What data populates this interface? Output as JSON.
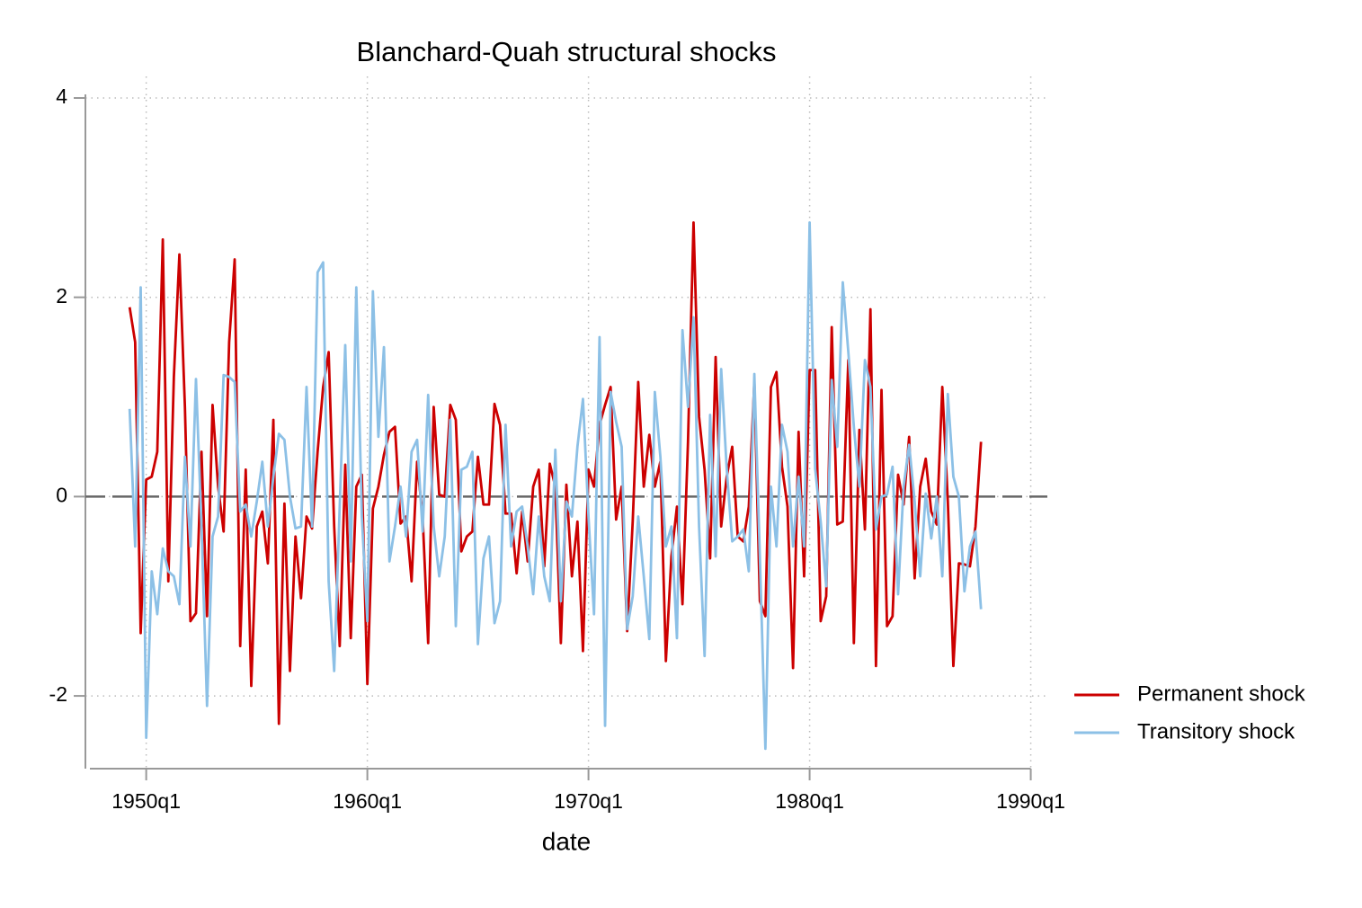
{
  "chart_data": {
    "type": "line",
    "title": "Blanchard-Quah structural shocks",
    "xlabel": "date",
    "x": [
      "1949q2",
      "1949q3",
      "1949q4",
      "1950q1",
      "1950q2",
      "1950q3",
      "1950q4",
      "1951q1",
      "1951q2",
      "1951q3",
      "1951q4",
      "1952q1",
      "1952q2",
      "1952q3",
      "1952q4",
      "1953q1",
      "1953q2",
      "1953q3",
      "1953q4",
      "1954q1",
      "1954q2",
      "1954q3",
      "1954q4",
      "1955q1",
      "1955q2",
      "1955q3",
      "1955q4",
      "1956q1",
      "1956q2",
      "1956q3",
      "1956q4",
      "1957q1",
      "1957q2",
      "1957q3",
      "1957q4",
      "1958q1",
      "1958q2",
      "1958q3",
      "1958q4",
      "1959q1",
      "1959q2",
      "1959q3",
      "1959q4",
      "1960q1",
      "1960q2",
      "1960q3",
      "1960q4",
      "1961q1",
      "1961q2",
      "1961q3",
      "1961q4",
      "1962q1",
      "1962q2",
      "1962q3",
      "1962q4",
      "1963q1",
      "1963q2",
      "1963q3",
      "1963q4",
      "1964q1",
      "1964q2",
      "1964q3",
      "1964q4",
      "1965q1",
      "1965q2",
      "1965q3",
      "1965q4",
      "1966q1",
      "1966q2",
      "1966q3",
      "1966q4",
      "1967q1",
      "1967q2",
      "1967q3",
      "1967q4",
      "1968q1",
      "1968q2",
      "1968q3",
      "1968q4",
      "1969q1",
      "1969q2",
      "1969q3",
      "1969q4",
      "1970q1",
      "1970q2",
      "1970q3",
      "1970q4",
      "1971q1",
      "1971q2",
      "1971q3",
      "1971q4",
      "1972q1",
      "1972q2",
      "1972q3",
      "1972q4",
      "1973q1",
      "1973q2",
      "1973q3",
      "1973q4",
      "1974q1",
      "1974q2",
      "1974q3",
      "1974q4",
      "1975q1",
      "1975q2",
      "1975q3",
      "1975q4",
      "1976q1",
      "1976q2",
      "1976q3",
      "1976q4",
      "1977q1",
      "1977q2",
      "1977q3",
      "1977q4",
      "1978q1",
      "1978q2",
      "1978q3",
      "1978q4",
      "1979q1",
      "1979q2",
      "1979q3",
      "1979q4",
      "1980q1",
      "1980q2",
      "1980q3",
      "1980q4",
      "1981q1",
      "1981q2",
      "1981q3",
      "1981q4",
      "1982q1",
      "1982q2",
      "1982q3",
      "1982q4",
      "1983q1",
      "1983q2",
      "1983q3",
      "1983q4",
      "1984q1",
      "1984q2",
      "1984q3",
      "1984q4",
      "1985q1",
      "1985q2",
      "1985q3",
      "1985q4",
      "1986q1",
      "1986q2",
      "1986q3",
      "1986q4",
      "1987q1",
      "1987q2",
      "1987q3",
      "1987q4"
    ],
    "series": [
      {
        "name": "Permanent shock",
        "color": "#cc0000",
        "values": [
          1.9,
          1.55,
          -1.37,
          0.17,
          0.2,
          0.45,
          2.58,
          -0.85,
          1.2,
          2.43,
          0.9,
          -1.25,
          -1.17,
          0.45,
          -1.2,
          0.92,
          0.1,
          -0.35,
          1.55,
          2.38,
          -1.5,
          0.27,
          -1.9,
          -0.3,
          -0.15,
          -0.67,
          0.77,
          -2.28,
          -0.07,
          -1.75,
          -0.4,
          -1.02,
          -0.2,
          -0.32,
          0.45,
          1.1,
          1.45,
          -0.3,
          -1.5,
          0.32,
          -1.42,
          0.1,
          0.22,
          -1.88,
          -0.12,
          0.1,
          0.42,
          0.65,
          0.7,
          -0.27,
          -0.2,
          -0.85,
          0.35,
          -0.2,
          -1.47,
          0.9,
          0.02,
          0.0,
          0.92,
          0.77,
          -0.55,
          -0.4,
          -0.35,
          0.4,
          -0.08,
          -0.08,
          0.93,
          0.72,
          -0.17,
          -0.17,
          -0.77,
          -0.15,
          -0.65,
          0.1,
          0.27,
          -0.7,
          0.33,
          0.1,
          -1.47,
          0.12,
          -0.8,
          -0.25,
          -1.55,
          0.27,
          0.1,
          0.72,
          0.92,
          1.1,
          -0.23,
          0.1,
          -1.35,
          -0.25,
          1.15,
          0.1,
          0.62,
          0.1,
          0.35,
          -1.65,
          -0.6,
          -0.1,
          -1.08,
          0.55,
          2.75,
          0.8,
          0.27,
          -0.62,
          1.4,
          -0.3,
          0.2,
          0.5,
          -0.4,
          -0.45,
          -0.1,
          1.15,
          -1.05,
          -1.2,
          1.1,
          1.25,
          0.3,
          -0.1,
          -1.72,
          0.65,
          -0.8,
          1.27,
          1.27,
          -1.25,
          -1.0,
          1.7,
          -0.28,
          -0.25,
          1.37,
          -1.47,
          0.67,
          -0.33,
          1.88,
          -1.7,
          1.07,
          -1.3,
          -1.2,
          0.22,
          -0.08,
          0.6,
          -0.82,
          0.1,
          0.38,
          -0.15,
          -0.28,
          1.1,
          -0.05,
          -1.7,
          -0.67,
          -0.68,
          -0.7,
          -0.3,
          0.55
        ]
      },
      {
        "name": "Transitory shock",
        "color": "#8cc0e6",
        "values": [
          0.88,
          -0.5,
          2.1,
          -2.42,
          -0.75,
          -1.18,
          -0.52,
          -0.75,
          -0.8,
          -1.08,
          0.4,
          -0.5,
          1.18,
          -0.3,
          -2.1,
          -0.4,
          -0.2,
          1.22,
          1.2,
          1.15,
          -0.15,
          -0.08,
          -0.4,
          -0.05,
          0.35,
          -0.3,
          0.2,
          0.63,
          0.57,
          0.0,
          -0.32,
          -0.3,
          1.1,
          -0.3,
          2.25,
          2.35,
          -0.85,
          -1.75,
          -0.1,
          1.52,
          -0.65,
          2.1,
          -0.2,
          -1.25,
          2.06,
          0.6,
          1.5,
          -0.65,
          -0.3,
          0.1,
          -0.4,
          0.45,
          0.57,
          -0.35,
          1.02,
          -0.3,
          -0.8,
          -0.4,
          0.77,
          -1.3,
          0.27,
          0.3,
          0.45,
          -1.48,
          -0.62,
          -0.4,
          -1.27,
          -1.05,
          0.72,
          -0.5,
          -0.15,
          -0.1,
          -0.5,
          -0.98,
          -0.2,
          -0.8,
          -1.05,
          0.47,
          -1.05,
          -0.05,
          -0.2,
          0.5,
          0.98,
          -0.2,
          -1.18,
          1.6,
          -2.3,
          1.05,
          0.75,
          0.5,
          -1.33,
          -1.0,
          -0.2,
          -0.8,
          -1.43,
          1.05,
          0.4,
          -0.5,
          -0.3,
          -1.42,
          1.67,
          0.9,
          1.8,
          -0.3,
          -1.6,
          0.82,
          -0.6,
          1.28,
          0.28,
          -0.45,
          -0.4,
          -0.33,
          -0.75,
          1.23,
          -0.6,
          -2.53,
          0.1,
          -0.5,
          0.72,
          0.45,
          -0.5,
          0.2,
          -0.5,
          2.75,
          0.28,
          -0.25,
          -0.9,
          1.17,
          0.5,
          2.15,
          1.45,
          0.7,
          0.1,
          1.37,
          1.1,
          -0.33,
          0.0,
          0.02,
          0.3,
          -0.98,
          0.1,
          0.52,
          -0.05,
          -0.8,
          0.03,
          -0.42,
          0.0,
          -0.8,
          1.03,
          0.2,
          0.0,
          -0.95,
          -0.5,
          -0.35,
          -1.13
        ]
      }
    ],
    "xlim": [
      "1947q2",
      "1990q4"
    ],
    "xticks": [
      "1950q1",
      "1960q1",
      "1970q1",
      "1980q1",
      "1990q1"
    ],
    "ylim": [
      -2.73,
      4
    ],
    "yticks": [
      -2,
      0,
      2,
      4
    ],
    "yline": 0,
    "grid": true,
    "legend": "right"
  }
}
